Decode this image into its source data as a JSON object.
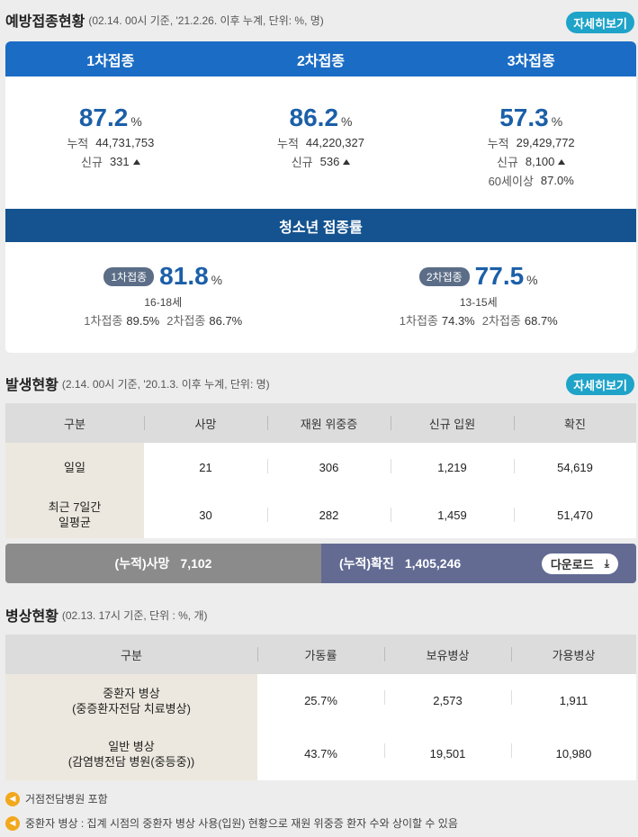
{
  "vaccination": {
    "title": "예방접종현황",
    "note": "(02.14. 00시 기준, '21.2.26. 이후 누계, 단위: %, 명)",
    "detail_label": "자세히보기",
    "doses": [
      {
        "header": "1차접종",
        "pct": "87.2",
        "unit": "%",
        "cum_label": "누적",
        "cum": "44,731,753",
        "new_label": "신규",
        "new": "331"
      },
      {
        "header": "2차접종",
        "pct": "86.2",
        "unit": "%",
        "cum_label": "누적",
        "cum": "44,220,327",
        "new_label": "신규",
        "new": "536"
      },
      {
        "header": "3차접종",
        "pct": "57.3",
        "unit": "%",
        "cum_label": "누적",
        "cum": "29,429,772",
        "new_label": "신규",
        "new": "8,100",
        "extra_label": "60세이상",
        "extra": "87.0%"
      }
    ],
    "teen": {
      "header": "청소년 접종률",
      "groups": [
        {
          "pill": "1차접종",
          "pct": "81.8",
          "unit": "%",
          "age": "16-18세",
          "r1_label": "1차접종",
          "r1": "89.5%",
          "r2_label": "2차접종",
          "r2": "86.7%"
        },
        {
          "pill": "2차접종",
          "pct": "77.5",
          "unit": "%",
          "age": "13-15세",
          "r1_label": "1차접종",
          "r1": "74.3%",
          "r2_label": "2차접종",
          "r2": "68.7%"
        }
      ]
    }
  },
  "occurrence": {
    "title": "발생현황",
    "note": "(2.14. 00시 기준, '20.1.3. 이후 누계, 단위: 명)",
    "detail_label": "자세히보기",
    "headers": [
      "구분",
      "사망",
      "재원 위중증",
      "신규 입원",
      "확진"
    ],
    "rows": [
      {
        "label": "일일",
        "values": [
          "21",
          "306",
          "1,219",
          "54,619"
        ]
      },
      {
        "label_1": "최근 7일간",
        "label_2": "일평균",
        "values": [
          "30",
          "282",
          "1,459",
          "51,470"
        ]
      }
    ],
    "summary": {
      "death_label": "(누적)사망",
      "death": "7,102",
      "confirmed_label": "(누적)확진",
      "confirmed": "1,405,246",
      "download_label": "다운로드"
    }
  },
  "beds": {
    "title": "병상현황",
    "note": "(02.13. 17시 기준, 단위 : %, 개)",
    "headers": [
      "구분",
      "가동률",
      "보유병상",
      "가용병상"
    ],
    "rows": [
      {
        "label_1": "중환자 병상",
        "label_2": "(중증환자전담 치료병상)",
        "values": [
          "25.7%",
          "2,573",
          "1,911"
        ]
      },
      {
        "label_1": "일반 병상",
        "label_2": "(감염병전담 병원(중등중))",
        "values": [
          "43.7%",
          "19,501",
          "10,980"
        ]
      }
    ]
  },
  "notes": [
    "거점전담병원 포함",
    "중환자 병상 : 집계 시점의 중환자 병상 사용(입원) 현황으로 재원 위중증 환자 수와 상이할 수 있음"
  ],
  "icons": {
    "speaker": "speaker-icon",
    "download": "download-icon",
    "up": "triangle-up-icon"
  },
  "colors": {
    "primary": "#1b6cc4",
    "teen_header": "#14538f",
    "detail_button": "#1fa3c8",
    "value_blue": "#1b5fa8",
    "confirmed_bar": "#636b93",
    "death_bar": "#8b8b8b",
    "speaker": "#f2a81d"
  }
}
